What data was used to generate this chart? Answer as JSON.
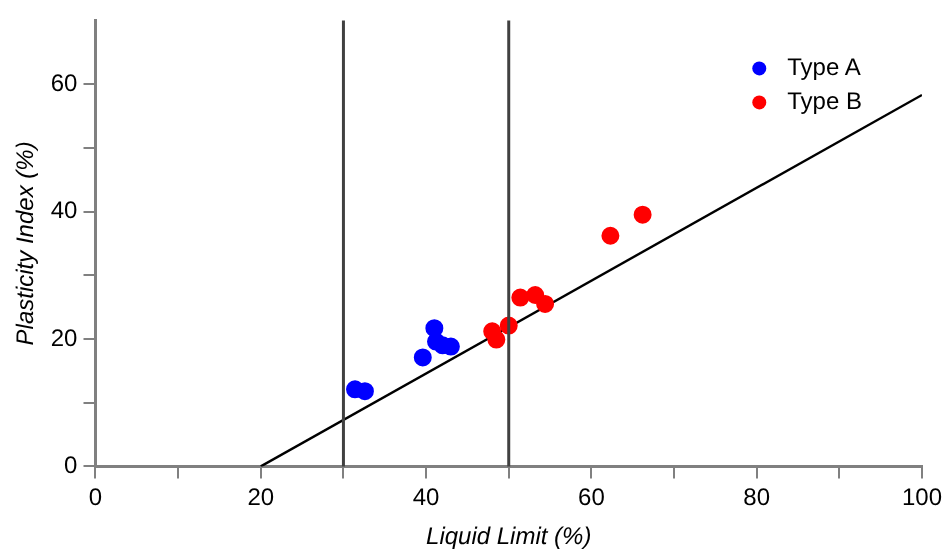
{
  "chart_data": {
    "type": "scatter",
    "xlabel": "Liquid Limit (%)",
    "ylabel": "Plasticity Index (%)",
    "xlim": [
      0,
      100
    ],
    "ylim": [
      0,
      70
    ],
    "xticks": [
      0,
      {
        "value": 10,
        "label": null
      },
      20,
      {
        "value": 30,
        "label": null
      },
      40,
      {
        "value": 50,
        "label": null
      },
      60,
      {
        "value": 70,
        "label": null
      },
      80,
      {
        "value": 90,
        "label": null
      },
      100
    ],
    "yticks": [
      0,
      {
        "value": 10,
        "label": null
      },
      20,
      {
        "value": 30,
        "label": null
      },
      40,
      {
        "value": 50,
        "label": null
      },
      60
    ],
    "grid": false,
    "legend": "top right",
    "marker": "circle",
    "series": [
      {
        "name": "Type A",
        "color": "#0000ff",
        "x": [
          31.4,
          32.6,
          39.6,
          41.0,
          41.2,
          42.0,
          43.0
        ],
        "values": [
          12.1,
          11.8,
          17.1,
          21.7,
          19.6,
          19.0,
          18.8
        ]
      },
      {
        "name": "Type B",
        "color": "#ff0000",
        "x": [
          48.0,
          48.5,
          50.0,
          51.4,
          53.2,
          54.4,
          62.3,
          66.2
        ],
        "values": [
          21.2,
          19.9,
          22.1,
          26.5,
          26.9,
          25.5,
          36.2,
          39.5
        ]
      },
      {
        "type": "line",
        "color": "#000000",
        "x": [
          20,
          100
        ],
        "values": [
          0,
          58.3
        ],
        "marker": "none",
        "line_style": "solid"
      }
    ],
    "ref_lines": [
      {
        "axis": "x",
        "value": 30,
        "color": "#404040"
      },
      {
        "axis": "x",
        "value": 50,
        "color": "#404040"
      }
    ]
  }
}
